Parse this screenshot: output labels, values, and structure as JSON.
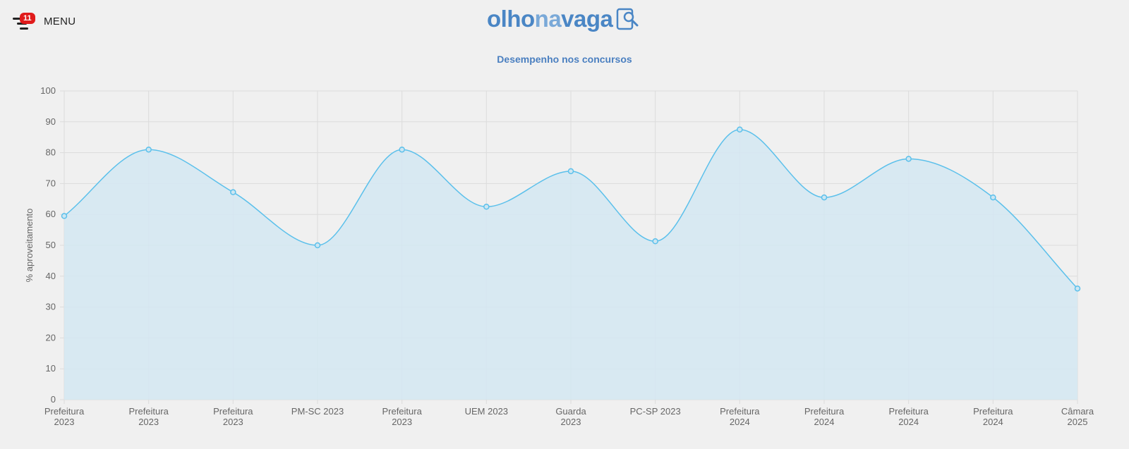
{
  "header": {
    "menu_label": "MENU",
    "menu_badge": "11",
    "logo_part1": "olho",
    "logo_part2": "na",
    "logo_part3": "vaga",
    "icons": {
      "menu": "hamburger-menu-icon",
      "logo": "search-document-icon"
    }
  },
  "colors": {
    "line": "#5bc0eb",
    "fill": "#d3e8f2",
    "grid": "#dcdcdc",
    "title": "#4a7fc0",
    "logo": "#4a86c5"
  },
  "chart_data": {
    "type": "area",
    "title": "Desempenho nos concursos",
    "ylabel": "% aproveitamento",
    "xlabel": "",
    "ylim": [
      0,
      100
    ],
    "yticks": [
      0,
      10,
      20,
      30,
      40,
      50,
      60,
      70,
      80,
      90,
      100
    ],
    "grid": true,
    "categories": [
      [
        "Prefeitura",
        "2023"
      ],
      [
        "Prefeitura",
        "2023"
      ],
      [
        "Prefeitura",
        "2023"
      ],
      [
        "PM-SC 2023"
      ],
      [
        "Prefeitura",
        "2023"
      ],
      [
        "UEM 2023"
      ],
      [
        "Guarda",
        "2023"
      ],
      [
        "PC-SP 2023"
      ],
      [
        "Prefeitura",
        "2024"
      ],
      [
        "Prefeitura",
        "2024"
      ],
      [
        "Prefeitura",
        "2024"
      ],
      [
        "Prefeitura",
        "2024"
      ],
      [
        "Câmara",
        "2025"
      ]
    ],
    "values": [
      59.5,
      81,
      67.2,
      50,
      81,
      62.5,
      74,
      51.3,
      87.5,
      65.5,
      78,
      65.5,
      36
    ]
  }
}
